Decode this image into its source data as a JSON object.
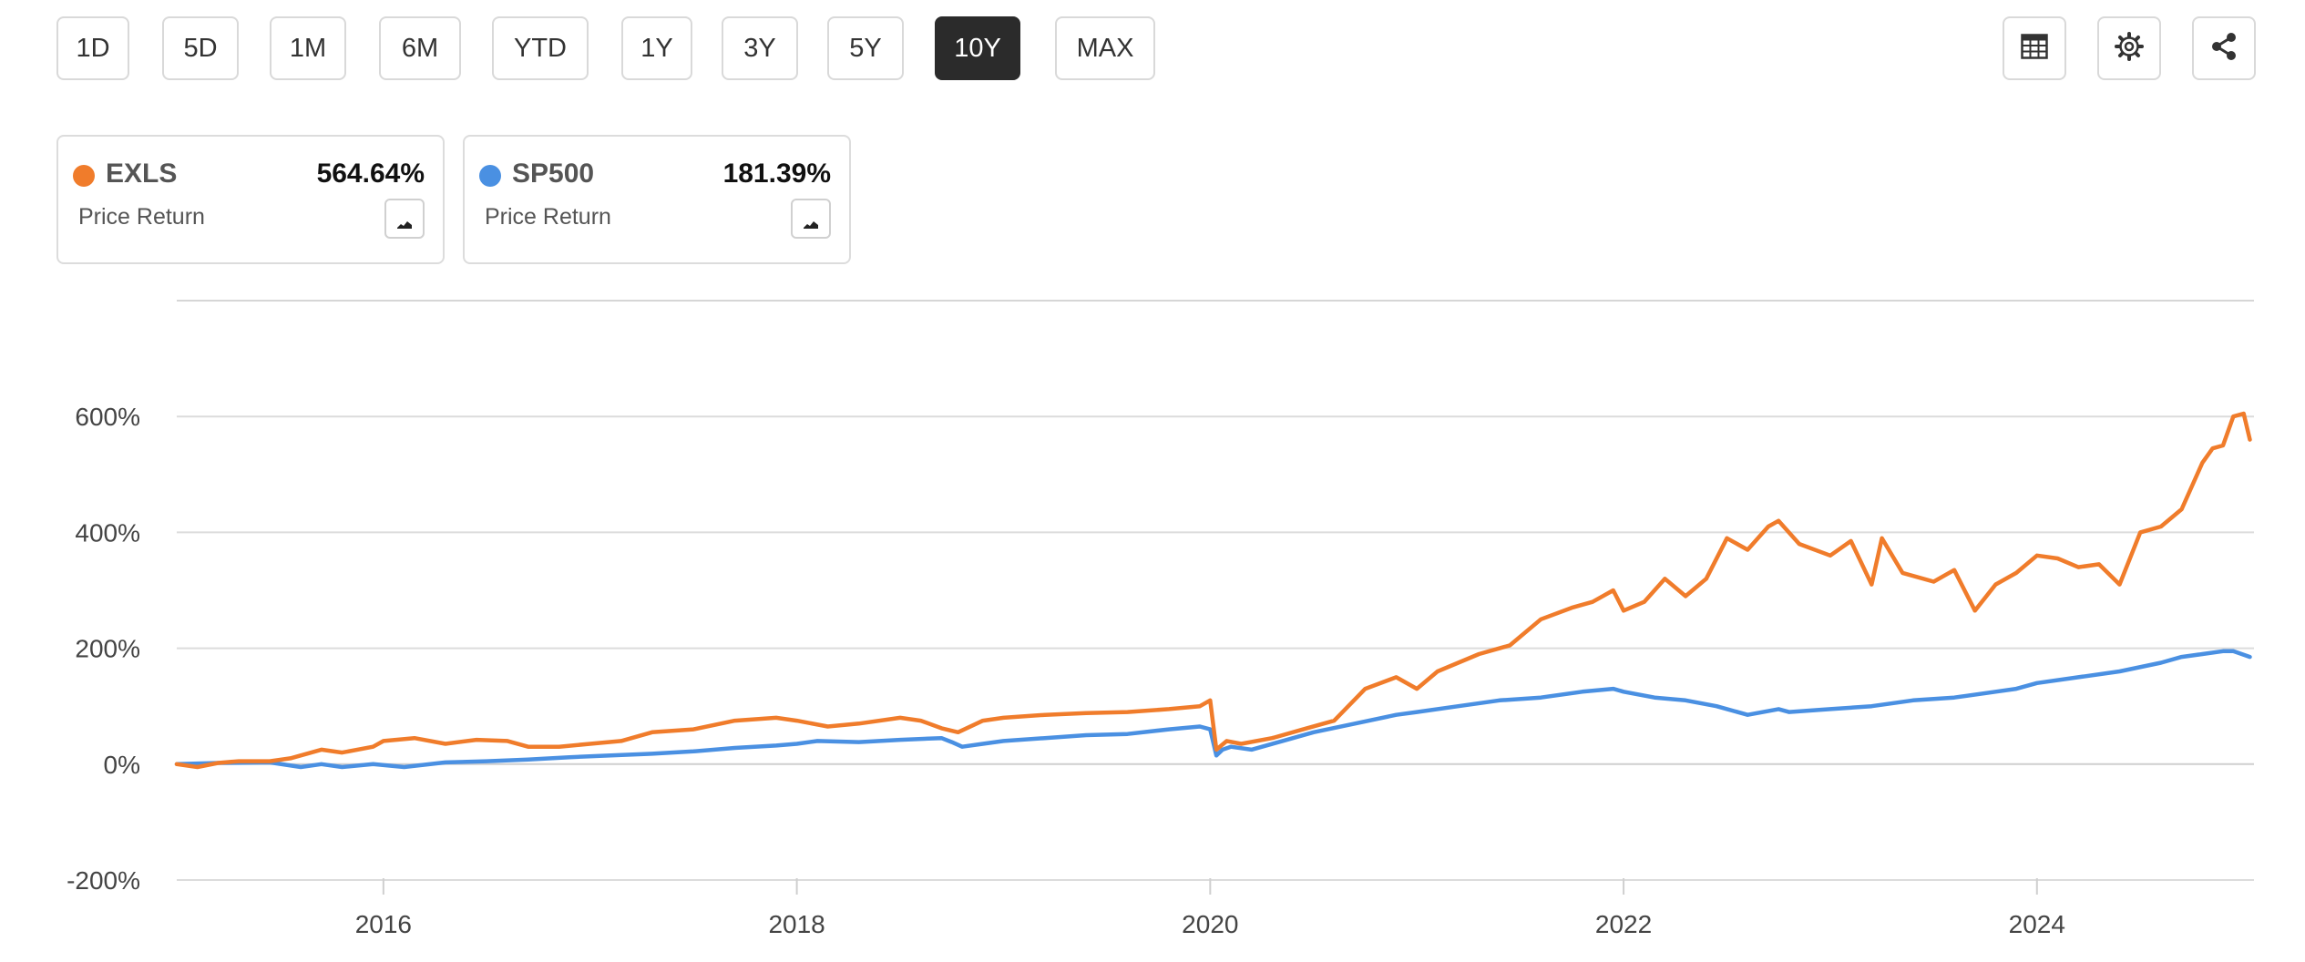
{
  "toolbar": {
    "ranges": [
      "1D",
      "5D",
      "1M",
      "6M",
      "YTD",
      "1Y",
      "3Y",
      "5Y",
      "10Y",
      "MAX"
    ],
    "active_range": "10Y",
    "icons": [
      "table-icon",
      "gear-icon",
      "share-icon"
    ]
  },
  "legend": [
    {
      "symbol": "EXLS",
      "value": "564.64%",
      "subtitle": "Price Return",
      "color": "#f07c2b"
    },
    {
      "symbol": "SP500",
      "value": "181.39%",
      "subtitle": "Price Return",
      "color": "#4a90e2"
    }
  ],
  "chart_data": {
    "type": "line",
    "title": "",
    "xlabel": "",
    "ylabel": "",
    "x_ticks": [
      "2016",
      "2018",
      "2020",
      "2022",
      "2024"
    ],
    "y_ticks": [
      "600%",
      "400%",
      "200%",
      "0%",
      "-200%"
    ],
    "ylim": [
      -200,
      800
    ],
    "xlim": [
      2015.0,
      2025.05
    ],
    "grid": true,
    "series": [
      {
        "name": "EXLS",
        "color": "#f07c2b",
        "x": [
          2015.0,
          2015.1,
          2015.2,
          2015.3,
          2015.45,
          2015.55,
          2015.7,
          2015.8,
          2015.95,
          2016.0,
          2016.15,
          2016.3,
          2016.45,
          2016.6,
          2016.7,
          2016.85,
          2017.0,
          2017.15,
          2017.3,
          2017.5,
          2017.7,
          2017.9,
          2018.0,
          2018.15,
          2018.3,
          2018.5,
          2018.6,
          2018.7,
          2018.78,
          2018.9,
          2019.0,
          2019.2,
          2019.4,
          2019.6,
          2019.8,
          2019.95,
          2020.0,
          2020.03,
          2020.08,
          2020.15,
          2020.3,
          2020.45,
          2020.6,
          2020.75,
          2020.9,
          2021.0,
          2021.1,
          2021.3,
          2021.45,
          2021.6,
          2021.75,
          2021.85,
          2021.95,
          2022.0,
          2022.1,
          2022.2,
          2022.3,
          2022.4,
          2022.5,
          2022.6,
          2022.7,
          2022.75,
          2022.85,
          2023.0,
          2023.1,
          2023.2,
          2023.25,
          2023.35,
          2023.5,
          2023.6,
          2023.7,
          2023.8,
          2023.9,
          2024.0,
          2024.1,
          2024.2,
          2024.3,
          2024.4,
          2024.5,
          2024.6,
          2024.7,
          2024.8,
          2024.85,
          2024.9,
          2024.95,
          2025.0,
          2025.03
        ],
        "y": [
          0,
          -5,
          2,
          5,
          5,
          10,
          25,
          20,
          30,
          40,
          45,
          35,
          42,
          40,
          30,
          30,
          35,
          40,
          55,
          60,
          75,
          80,
          75,
          65,
          70,
          80,
          75,
          62,
          55,
          75,
          80,
          85,
          88,
          90,
          95,
          100,
          110,
          25,
          40,
          35,
          45,
          60,
          75,
          130,
          150,
          130,
          160,
          190,
          205,
          250,
          270,
          280,
          300,
          265,
          280,
          320,
          290,
          320,
          390,
          370,
          410,
          420,
          380,
          360,
          385,
          310,
          390,
          330,
          315,
          335,
          265,
          310,
          330,
          360,
          355,
          340,
          345,
          310,
          400,
          410,
          440,
          520,
          545,
          550,
          600,
          605,
          560
        ]
      },
      {
        "name": "SP500",
        "color": "#4a90e2",
        "x": [
          2015.0,
          2015.2,
          2015.45,
          2015.6,
          2015.7,
          2015.8,
          2015.95,
          2016.1,
          2016.3,
          2016.5,
          2016.7,
          2016.9,
          2017.1,
          2017.3,
          2017.5,
          2017.7,
          2017.9,
          2018.0,
          2018.1,
          2018.3,
          2018.5,
          2018.7,
          2018.75,
          2018.8,
          2018.9,
          2019.0,
          2019.2,
          2019.4,
          2019.6,
          2019.8,
          2019.95,
          2020.0,
          2020.03,
          2020.06,
          2020.1,
          2020.2,
          2020.35,
          2020.5,
          2020.7,
          2020.9,
          2021.0,
          2021.2,
          2021.4,
          2021.6,
          2021.8,
          2021.95,
          2022.0,
          2022.15,
          2022.3,
          2022.45,
          2022.6,
          2022.75,
          2022.8,
          2023.0,
          2023.2,
          2023.4,
          2023.6,
          2023.8,
          2023.9,
          2024.0,
          2024.2,
          2024.4,
          2024.6,
          2024.7,
          2024.8,
          2024.9,
          2024.95,
          2025.03
        ],
        "y": [
          0,
          2,
          3,
          -5,
          0,
          -5,
          0,
          -5,
          3,
          5,
          8,
          12,
          15,
          18,
          22,
          28,
          32,
          35,
          40,
          38,
          42,
          45,
          38,
          30,
          35,
          40,
          45,
          50,
          52,
          60,
          65,
          60,
          15,
          25,
          30,
          25,
          40,
          55,
          70,
          85,
          90,
          100,
          110,
          115,
          125,
          130,
          125,
          115,
          110,
          100,
          85,
          95,
          90,
          95,
          100,
          110,
          115,
          125,
          130,
          140,
          150,
          160,
          175,
          185,
          190,
          195,
          195,
          185
        ]
      }
    ]
  }
}
